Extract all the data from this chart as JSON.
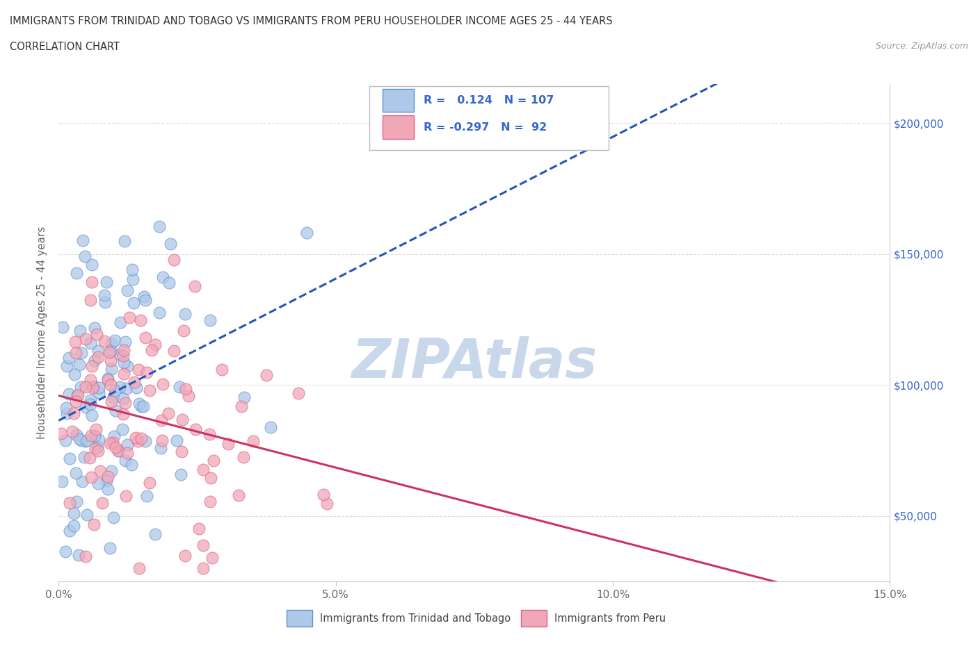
{
  "title_line1": "IMMIGRANTS FROM TRINIDAD AND TOBAGO VS IMMIGRANTS FROM PERU HOUSEHOLDER INCOME AGES 25 - 44 YEARS",
  "title_line2": "CORRELATION CHART",
  "source_text": "Source: ZipAtlas.com",
  "ylabel": "Householder Income Ages 25 - 44 years",
  "xlim": [
    0.0,
    0.15
  ],
  "ylim": [
    25000,
    215000
  ],
  "xtick_labels": [
    "0.0%",
    "5.0%",
    "10.0%",
    "15.0%"
  ],
  "xtick_vals": [
    0.0,
    0.05,
    0.1,
    0.15
  ],
  "ytick_vals": [
    50000,
    100000,
    150000,
    200000
  ],
  "ytick_labels": [
    "$50,000",
    "$100,000",
    "$150,000",
    "$200,000"
  ],
  "blue_R": "0.124",
  "blue_N": "107",
  "pink_R": "-0.297",
  "pink_N": "92",
  "blue_color": "#adc8e8",
  "pink_color": "#f0a8b8",
  "blue_edge_color": "#6090d0",
  "pink_edge_color": "#e06080",
  "blue_line_color": "#2255bb",
  "pink_line_color": "#cc3366",
  "legend_text_color": "#3366cc",
  "watermark_color": "#c8d8ea",
  "background_color": "#ffffff",
  "grid_color": "#dddddd"
}
